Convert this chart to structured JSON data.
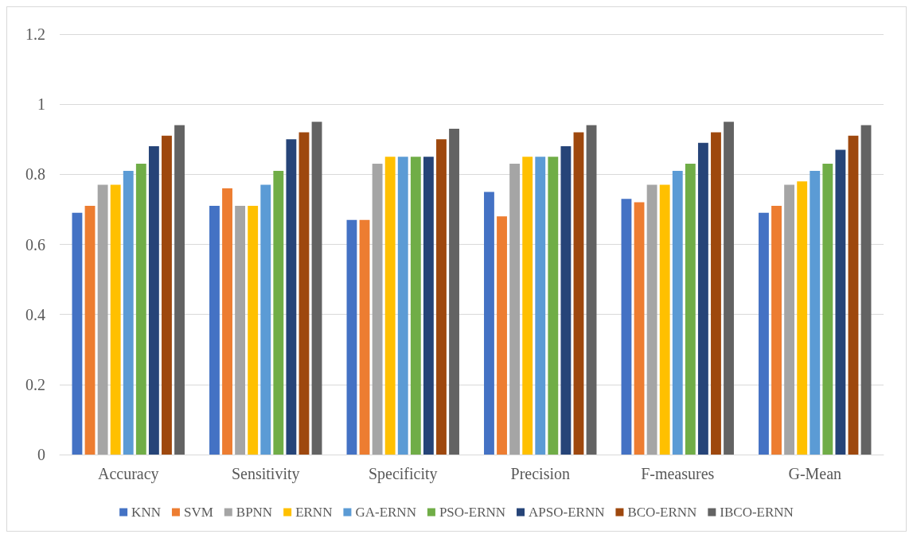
{
  "chart_data": {
    "type": "bar",
    "categories": [
      "Accuracy",
      "Sensitivity",
      "Specificity",
      "Precision",
      "F-measures",
      "G-Mean"
    ],
    "series": [
      {
        "name": "KNN",
        "color": "#4472c4",
        "values": [
          0.69,
          0.71,
          0.67,
          0.75,
          0.73,
          0.69
        ]
      },
      {
        "name": "SVM",
        "color": "#ed7d31",
        "values": [
          0.71,
          0.76,
          0.67,
          0.68,
          0.72,
          0.71
        ]
      },
      {
        "name": "BPNN",
        "color": "#a5a5a5",
        "values": [
          0.77,
          0.71,
          0.83,
          0.83,
          0.77,
          0.77
        ]
      },
      {
        "name": "ERNN",
        "color": "#ffc000",
        "values": [
          0.77,
          0.71,
          0.85,
          0.85,
          0.77,
          0.78
        ]
      },
      {
        "name": "GA-ERNN",
        "color": "#5b9bd5",
        "values": [
          0.81,
          0.77,
          0.85,
          0.85,
          0.81,
          0.81
        ]
      },
      {
        "name": "PSO-ERNN",
        "color": "#70ad47",
        "values": [
          0.83,
          0.81,
          0.85,
          0.85,
          0.83,
          0.83
        ]
      },
      {
        "name": "APSO-ERNN",
        "color": "#264478",
        "values": [
          0.88,
          0.9,
          0.85,
          0.88,
          0.89,
          0.87
        ]
      },
      {
        "name": "BCO-ERNN",
        "color": "#9e480e",
        "values": [
          0.91,
          0.92,
          0.9,
          0.92,
          0.92,
          0.91
        ]
      },
      {
        "name": "IBCO-ERNN",
        "color": "#636363",
        "values": [
          0.94,
          0.95,
          0.93,
          0.94,
          0.95,
          0.94
        ]
      }
    ],
    "ylim": [
      0,
      1.2
    ],
    "yticks": [
      0,
      0.2,
      0.4,
      0.6,
      0.8,
      1,
      1.2
    ],
    "grid": "y",
    "legend": "bottom"
  }
}
